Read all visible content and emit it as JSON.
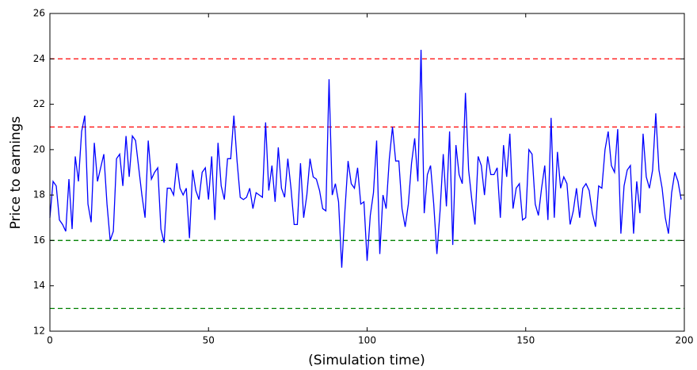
{
  "chart_data": {
    "type": "line",
    "xlabel": "(Simulation time)",
    "ylabel": "Price to earnings",
    "xlim": [
      0,
      200
    ],
    "xticks": [
      0,
      50,
      100,
      150,
      200
    ],
    "ylim": [
      12,
      26
    ],
    "yticks": [
      12,
      14,
      16,
      18,
      20,
      22,
      24,
      26
    ],
    "hlines": [
      {
        "value": 24,
        "color": "#ff0000"
      },
      {
        "value": 21,
        "color": "#ff0000"
      },
      {
        "value": 16,
        "color": "#008000"
      },
      {
        "value": 13,
        "color": "#008000"
      }
    ],
    "x": [
      0,
      1,
      2,
      3,
      4,
      5,
      6,
      7,
      8,
      9,
      10,
      11,
      12,
      13,
      14,
      15,
      16,
      17,
      18,
      19,
      20,
      21,
      22,
      23,
      24,
      25,
      26,
      27,
      28,
      29,
      30,
      31,
      32,
      33,
      34,
      35,
      36,
      37,
      38,
      39,
      40,
      41,
      42,
      43,
      44,
      45,
      46,
      47,
      48,
      49,
      50,
      51,
      52,
      53,
      54,
      55,
      56,
      57,
      58,
      59,
      60,
      61,
      62,
      63,
      64,
      65,
      66,
      67,
      68,
      69,
      70,
      71,
      72,
      73,
      74,
      75,
      76,
      77,
      78,
      79,
      80,
      81,
      82,
      83,
      84,
      85,
      86,
      87,
      88,
      89,
      90,
      91,
      92,
      93,
      94,
      95,
      96,
      97,
      98,
      99,
      100,
      101,
      102,
      103,
      104,
      105,
      106,
      107,
      108,
      109,
      110,
      111,
      112,
      113,
      114,
      115,
      116,
      117,
      118,
      119,
      120,
      121,
      122,
      123,
      124,
      125,
      126,
      127,
      128,
      129,
      130,
      131,
      132,
      133,
      134,
      135,
      136,
      137,
      138,
      139,
      140,
      141,
      142,
      143,
      144,
      145,
      146,
      147,
      148,
      149,
      150,
      151,
      152,
      153,
      154,
      155,
      156,
      157,
      158,
      159,
      160,
      161,
      162,
      163,
      164,
      165,
      166,
      167,
      168,
      169,
      170,
      171,
      172,
      173,
      174,
      175,
      176,
      177,
      178,
      179,
      180,
      181,
      182,
      183,
      184,
      185,
      186,
      187,
      188,
      189,
      190,
      191,
      192,
      193,
      194,
      195,
      196,
      197,
      198,
      199
    ],
    "series": [
      {
        "color": "#0000ff",
        "values": [
          17,
          18.6,
          18.4,
          16.9,
          16.7,
          16.4,
          18.7,
          16.5,
          19.7,
          18.6,
          20.8,
          21.5,
          17.6,
          16.8,
          20.3,
          18.6,
          19.2,
          19.8,
          17.6,
          16.0,
          16.4,
          19.6,
          19.8,
          18.4,
          20.6,
          18.8,
          20.6,
          20.4,
          19.2,
          18.0,
          17.0,
          20.4,
          18.7,
          19.0,
          19.2,
          16.5,
          15.9,
          18.3,
          18.3,
          18.0,
          19.4,
          18.3,
          18.0,
          18.3,
          16.1,
          19.1,
          18.2,
          17.8,
          19.0,
          19.2,
          17.8,
          19.7,
          16.9,
          20.3,
          18.4,
          17.8,
          19.6,
          19.6,
          21.5,
          19.5,
          17.9,
          17.8,
          17.9,
          18.3,
          17.4,
          18.1,
          18.0,
          17.9,
          21.2,
          18.2,
          19.3,
          17.7,
          20.1,
          18.3,
          17.9,
          19.6,
          18.3,
          16.7,
          16.7,
          19.4,
          17.0,
          18.0,
          19.6,
          18.8,
          18.7,
          18.2,
          17.4,
          17.3,
          23.1,
          18.0,
          18.5,
          17.7,
          14.8,
          17.3,
          19.5,
          18.5,
          18.3,
          19.2,
          17.6,
          17.7,
          15.1,
          17.1,
          18.1,
          20.4,
          15.4,
          18.0,
          17.4,
          19.6,
          21.0,
          19.5,
          19.5,
          17.4,
          16.6,
          17.6,
          19.4,
          20.5,
          18.6,
          24.4,
          17.2,
          18.9,
          19.3,
          17.6,
          15.4,
          17.3,
          19.8,
          17.5,
          20.8,
          15.8,
          20.2,
          18.9,
          18.5,
          22.5,
          19.1,
          17.8,
          16.7,
          19.7,
          19.3,
          18.0,
          19.7,
          18.9,
          18.9,
          19.2,
          17.0,
          20.2,
          18.8,
          20.7,
          17.4,
          18.3,
          18.5,
          16.9,
          17.0,
          20.0,
          19.8,
          17.6,
          17.1,
          18.3,
          19.3,
          16.9,
          21.4,
          17.0,
          19.9,
          18.3,
          18.8,
          18.5,
          16.7,
          17.3,
          18.3,
          17.0,
          18.3,
          18.5,
          18.2,
          17.2,
          16.6,
          18.4,
          18.3,
          20.0,
          20.8,
          19.3,
          19.0,
          20.9,
          16.3,
          18.4,
          19.1,
          19.3,
          16.3,
          18.6,
          17.2,
          20.7,
          18.8,
          18.3,
          19.1,
          21.6,
          19.1,
          18.3,
          17.0,
          16.3,
          18.1,
          19.0,
          18.6,
          17.8
        ]
      }
    ]
  }
}
